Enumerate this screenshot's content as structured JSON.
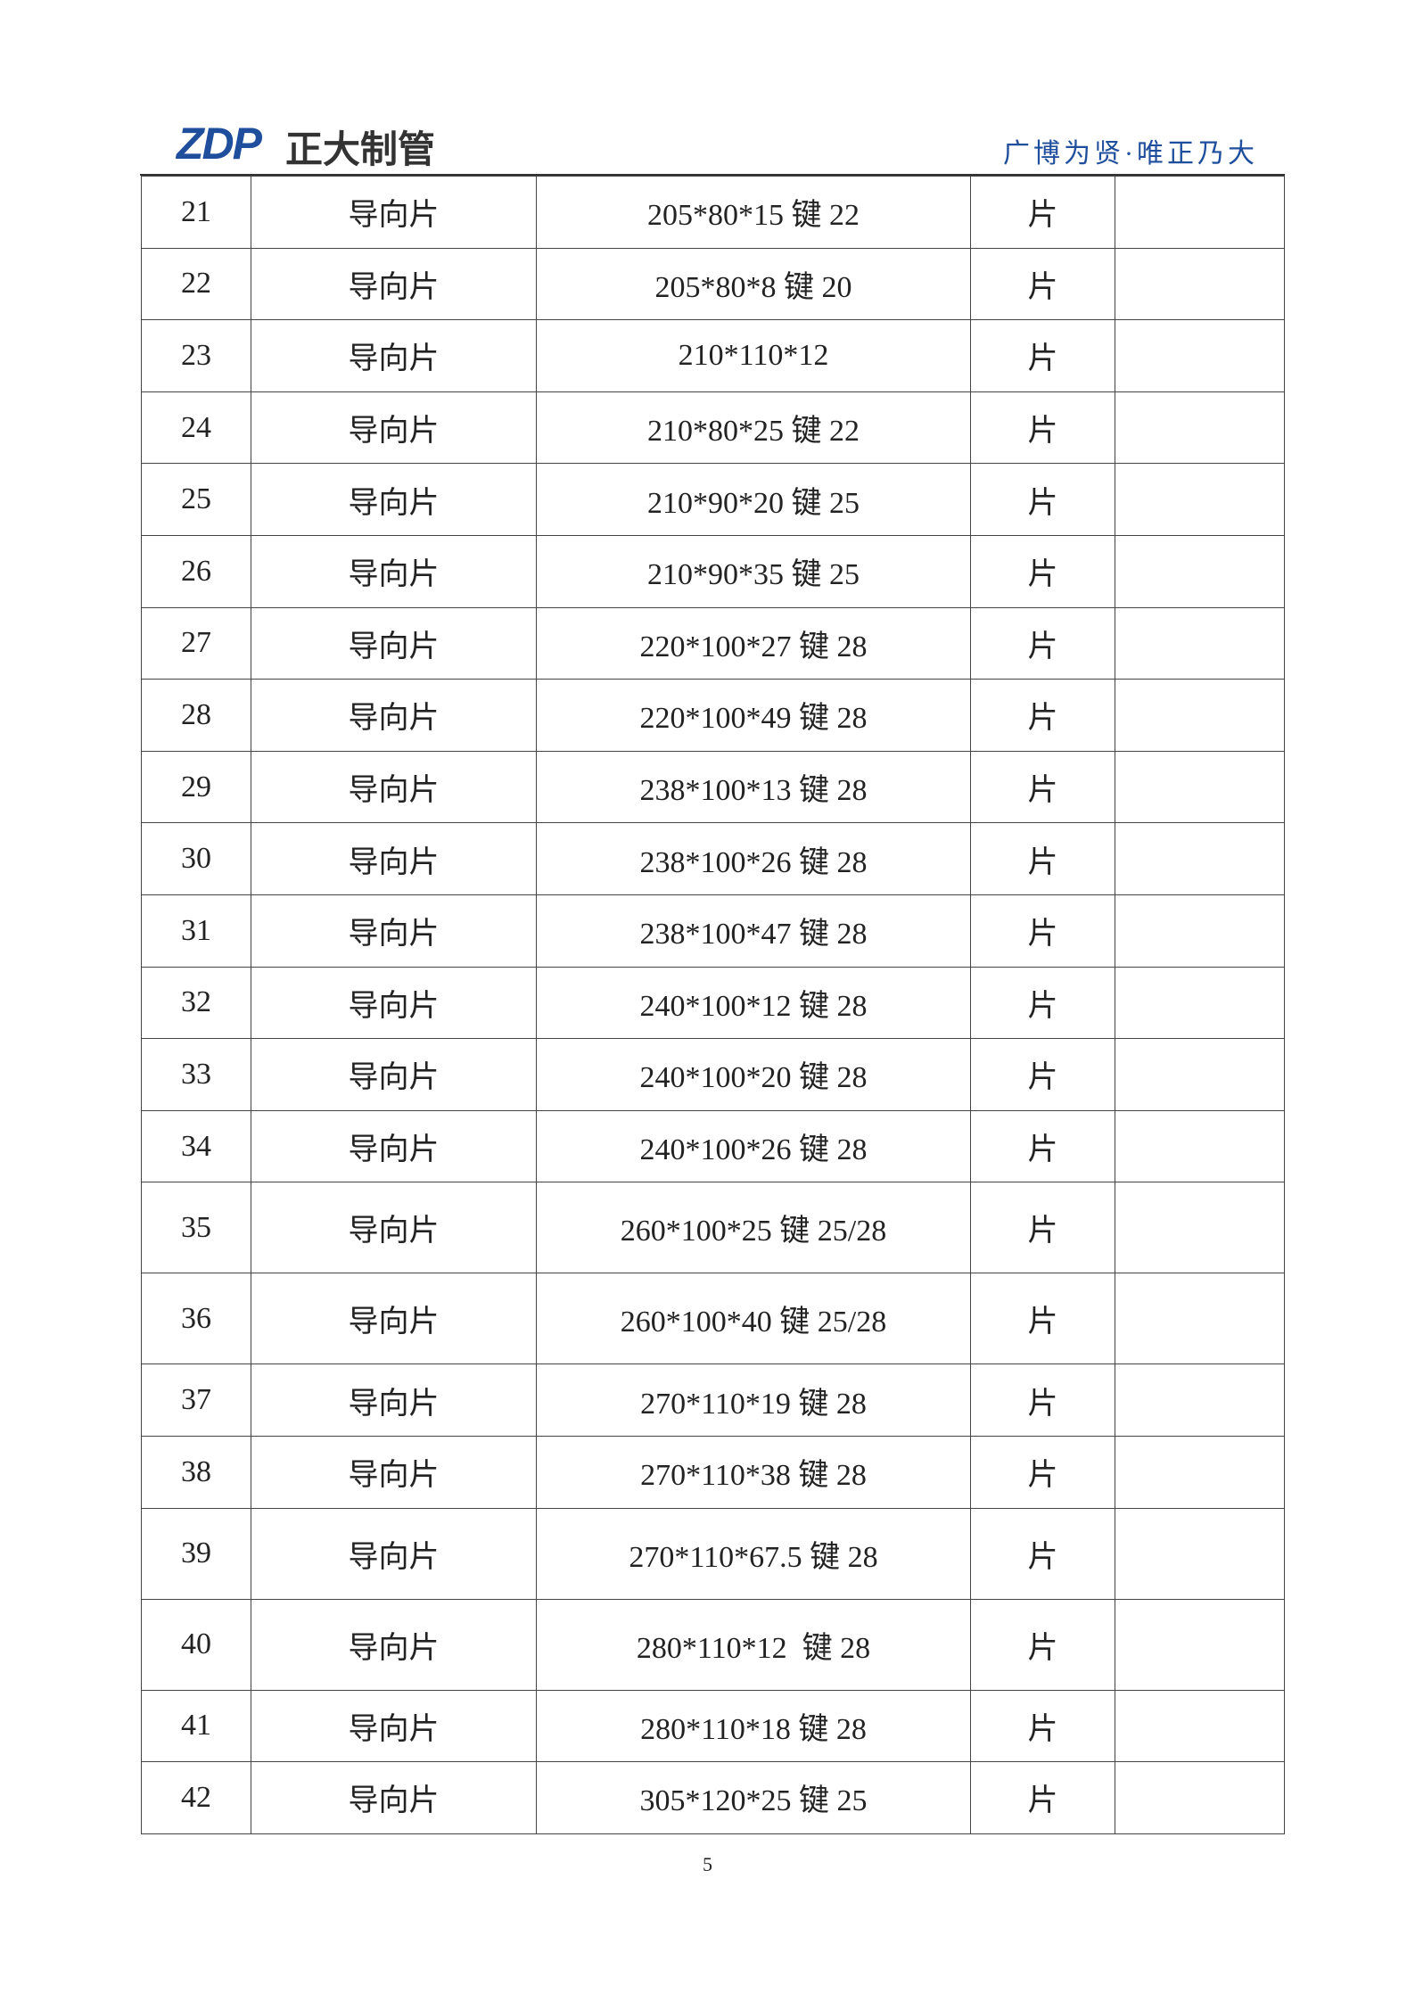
{
  "header": {
    "logo": "ZDP",
    "company": "正大制管",
    "motto": "广博为贤·唯正乃大"
  },
  "table": {
    "rows": [
      [
        "21",
        "导向片",
        "205*80*15 键 22",
        "片"
      ],
      [
        "22",
        "导向片",
        "205*80*8 键 20",
        "片"
      ],
      [
        "23",
        "导向片",
        "210*110*12",
        "片"
      ],
      [
        "24",
        "导向片",
        "210*80*25 键 22",
        "片"
      ],
      [
        "25",
        "导向片",
        "210*90*20 键 25",
        "片"
      ],
      [
        "26",
        "导向片",
        "210*90*35 键 25",
        "片"
      ],
      [
        "27",
        "导向片",
        "220*100*27 键 28",
        "片"
      ],
      [
        "28",
        "导向片",
        "220*100*49 键 28",
        "片"
      ],
      [
        "29",
        "导向片",
        "238*100*13 键 28",
        "片"
      ],
      [
        "30",
        "导向片",
        "238*100*26 键 28",
        "片"
      ],
      [
        "31",
        "导向片",
        "238*100*47 键 28",
        "片"
      ],
      [
        "32",
        "导向片",
        "240*100*12 键 28",
        "片"
      ],
      [
        "33",
        "导向片",
        "240*100*20 键 28",
        "片"
      ],
      [
        "34",
        "导向片",
        "240*100*26 键 28",
        "片"
      ],
      [
        "35",
        "导向片",
        "260*100*25 键 25/28",
        "片"
      ],
      [
        "36",
        "导向片",
        "260*100*40 键 25/28",
        "片"
      ],
      [
        "37",
        "导向片",
        "270*110*19 键 28",
        "片"
      ],
      [
        "38",
        "导向片",
        "270*110*38 键 28",
        "片"
      ],
      [
        "39",
        "导向片",
        "270*110*67.5 键 28",
        "片"
      ],
      [
        "40",
        "导向片",
        "280*110*12  键 28",
        "片"
      ],
      [
        "41",
        "导向片",
        "280*110*18 键 28",
        "片"
      ],
      [
        "42",
        "导向片",
        "305*120*25 键 25",
        "片"
      ]
    ]
  },
  "footer": {
    "page_number": "5"
  }
}
